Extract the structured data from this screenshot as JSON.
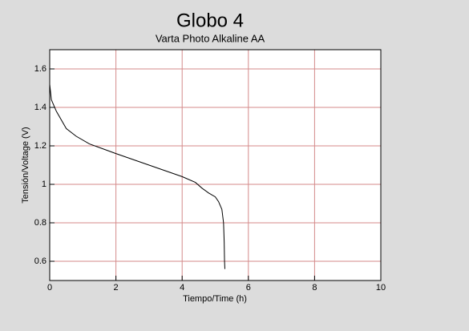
{
  "chart_data": {
    "type": "line",
    "title": "Globo 4",
    "subtitle": "Varta Photo Alkaline AA",
    "x_label": "Tiempo/Time (h)",
    "y_label": "Tensión/Voltage (V)",
    "xlim": [
      0,
      10
    ],
    "xticks": [
      0,
      2,
      4,
      6,
      8,
      10
    ],
    "ylim": [
      0.5,
      1.7
    ],
    "yticks": [
      0.6,
      0.8,
      1,
      1.2,
      1.4,
      1.6
    ],
    "grid": true,
    "grid_color": "#d48a8a",
    "series": [
      {
        "color": "#000000",
        "x": [
          0,
          0.05,
          0.2,
          0.5,
          0.8,
          1.2,
          2,
          3,
          4,
          4.4,
          4.6,
          4.8,
          5.0,
          5.1,
          5.2,
          5.25,
          5.27,
          5.28,
          5.29
        ],
        "values": [
          1.52,
          1.44,
          1.38,
          1.29,
          1.25,
          1.21,
          1.16,
          1.1,
          1.04,
          1.01,
          0.98,
          0.955,
          0.935,
          0.91,
          0.87,
          0.8,
          0.7,
          0.6,
          0.56
        ]
      }
    ]
  }
}
